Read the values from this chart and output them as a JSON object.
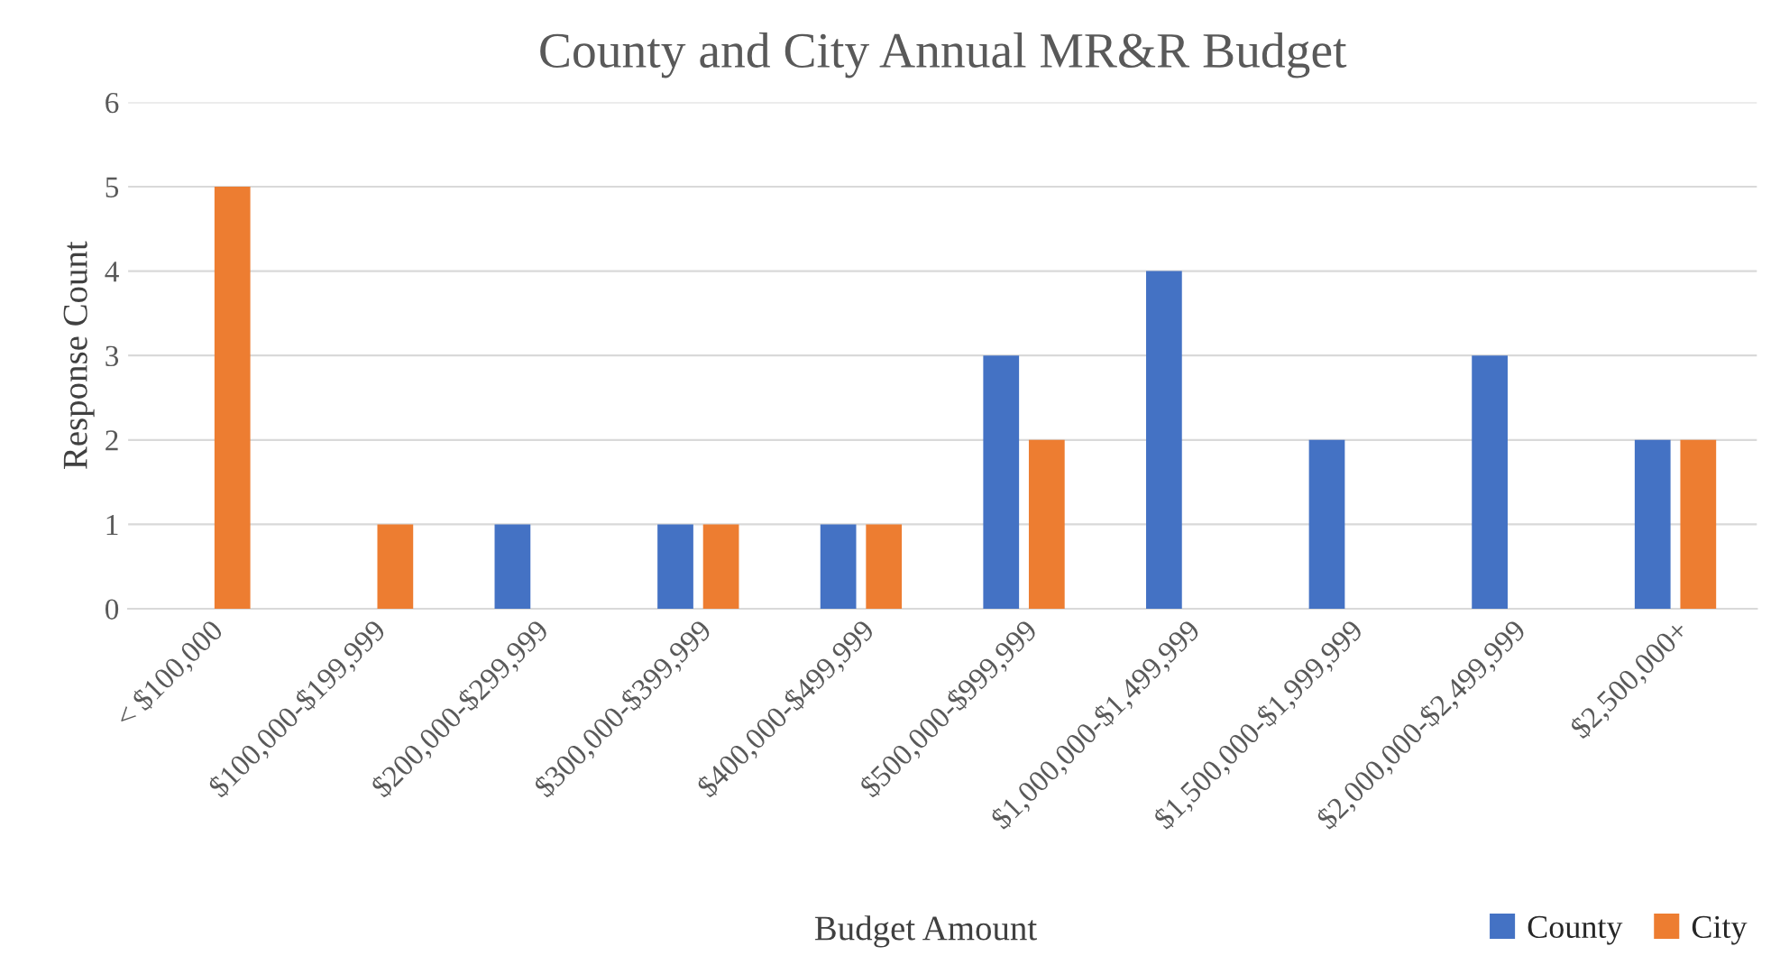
{
  "chart_data": {
    "type": "bar",
    "title": "County and City Annual MR&R Budget",
    "xlabel": "Budget Amount",
    "ylabel": "Response Count",
    "categories": [
      "< $100,000",
      "$100,000-$199,999",
      "$200,000-$299,999",
      "$300,000-$399,999",
      "$400,000-$499,999",
      "$500,000-$999,999",
      "$1,000,000-$1,499,999",
      "$1,500,000-$1,999,999",
      "$2,000,000-$2,499,999",
      "$2,500,000+"
    ],
    "series": [
      {
        "name": "County",
        "color": "#4472c4",
        "values": [
          0,
          0,
          1,
          1,
          1,
          3,
          4,
          2,
          3,
          2
        ]
      },
      {
        "name": "City",
        "color": "#ed7d31",
        "values": [
          5,
          1,
          0,
          1,
          1,
          2,
          0,
          0,
          0,
          2
        ]
      }
    ],
    "ylim": [
      0,
      6
    ],
    "yticks": [
      0,
      1,
      2,
      3,
      4,
      5,
      6
    ],
    "grid": "y",
    "legend": "bottom right"
  }
}
